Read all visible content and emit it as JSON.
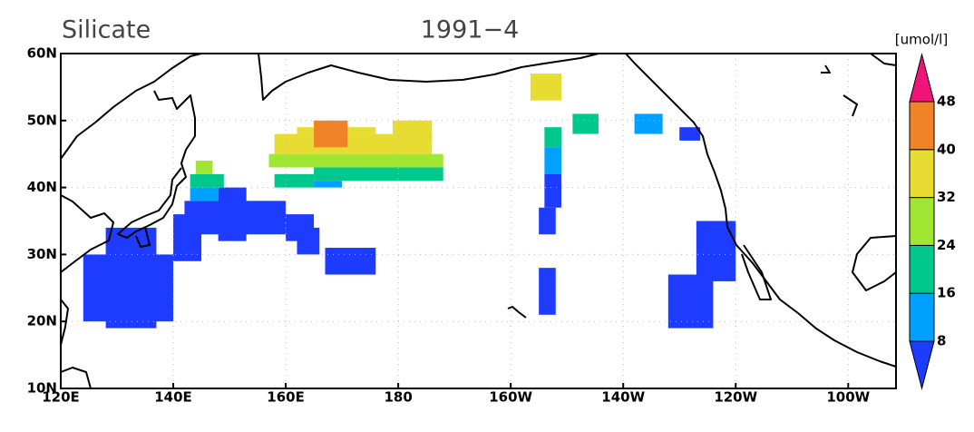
{
  "chart_data": {
    "type": "map",
    "title": "Silicate",
    "subtitle": "1991−4",
    "xlim": [
      120,
      268.5
    ],
    "ylim": [
      10,
      60
    ],
    "xticks": [
      {
        "value": 120,
        "label": "120E"
      },
      {
        "value": 140,
        "label": "140E"
      },
      {
        "value": 160,
        "label": "160E"
      },
      180,
      {
        "value": 200,
        "label": "160W"
      },
      {
        "value": 220,
        "label": "140W"
      },
      {
        "value": 240,
        "label": "120W"
      },
      {
        "value": 260,
        "label": "100W"
      }
    ],
    "yticks": [
      {
        "value": 10,
        "label": "10N"
      },
      {
        "value": 20,
        "label": "20N"
      },
      {
        "value": 30,
        "label": "30N"
      },
      {
        "value": 40,
        "label": "40N"
      },
      {
        "value": 50,
        "label": "50N"
      },
      {
        "value": 60,
        "label": "60N"
      }
    ],
    "grid": true,
    "colorbar": {
      "label": "[umol/l]",
      "levels": [
        8,
        16,
        24,
        32,
        40,
        48
      ],
      "colors": [
        "#1e3cff",
        "#00a0ff",
        "#00c88c",
        "#a0e632",
        "#e6dc32",
        "#f08228",
        "#f0147a"
      ]
    },
    "cells": [
      {
        "lon": [
          124,
          140
        ],
        "lat": [
          20,
          30
        ],
        "value": 4
      },
      {
        "lon": [
          128,
          137
        ],
        "lat": [
          19,
          34
        ],
        "value": 4
      },
      {
        "lon": [
          140,
          145
        ],
        "lat": [
          29,
          36
        ],
        "value": 4
      },
      {
        "lon": [
          142,
          160
        ],
        "lat": [
          33,
          38
        ],
        "value": 4
      },
      {
        "lon": [
          148,
          153
        ],
        "lat": [
          32,
          40
        ],
        "value": 4
      },
      {
        "lon": [
          160,
          165
        ],
        "lat": [
          32,
          36
        ],
        "value": 4
      },
      {
        "lon": [
          162,
          166
        ],
        "lat": [
          30,
          34
        ],
        "value": 4
      },
      {
        "lon": [
          167,
          176
        ],
        "lat": [
          27,
          31
        ],
        "value": 4
      },
      {
        "lon": [
          143,
          148
        ],
        "lat": [
          38,
          40
        ],
        "value": 12
      },
      {
        "lon": [
          143,
          149
        ],
        "lat": [
          40,
          42
        ],
        "value": 20
      },
      {
        "lon": [
          144,
          147
        ],
        "lat": [
          42,
          44
        ],
        "value": 28
      },
      {
        "lon": [
          158,
          165
        ],
        "lat": [
          40,
          42
        ],
        "value": 20
      },
      {
        "lon": [
          165,
          170
        ],
        "lat": [
          40,
          41
        ],
        "value": 12
      },
      {
        "lon": [
          165,
          188
        ],
        "lat": [
          41,
          43
        ],
        "value": 20
      },
      {
        "lon": [
          157,
          188
        ],
        "lat": [
          43,
          45
        ],
        "value": 28
      },
      {
        "lon": [
          158,
          186
        ],
        "lat": [
          45,
          48
        ],
        "value": 36
      },
      {
        "lon": [
          162,
          176
        ],
        "lat": [
          48,
          49
        ],
        "value": 36
      },
      {
        "lon": [
          165,
          171
        ],
        "lat": [
          46,
          50
        ],
        "value": 44
      },
      {
        "lon": [
          179,
          186
        ],
        "lat": [
          47,
          50
        ],
        "value": 36
      },
      {
        "lon": [
          206,
          209
        ],
        "lat": [
          46,
          49
        ],
        "value": 20
      },
      {
        "lon": [
          206,
          209
        ],
        "lat": [
          42,
          46
        ],
        "value": 12
      },
      {
        "lon": [
          206,
          209
        ],
        "lat": [
          37,
          42
        ],
        "value": 4
      },
      {
        "lon": [
          205,
          208
        ],
        "lat": [
          33,
          37
        ],
        "value": 4
      },
      {
        "lon": [
          205,
          208
        ],
        "lat": [
          21,
          28
        ],
        "value": 4
      },
      {
        "lon": [
          203.5,
          209
        ],
        "lat": [
          53,
          57
        ],
        "value": 36
      },
      {
        "lon": [
          211,
          215.6
        ],
        "lat": [
          48,
          51
        ],
        "value": 20
      },
      {
        "lon": [
          222,
          227
        ],
        "lat": [
          48,
          51
        ],
        "value": 12
      },
      {
        "lon": [
          230,
          233.7
        ],
        "lat": [
          47,
          49
        ],
        "value": 4
      },
      {
        "lon": [
          233,
          240
        ],
        "lat": [
          26,
          35
        ],
        "value": 4
      },
      {
        "lon": [
          228,
          236
        ],
        "lat": [
          19,
          27
        ],
        "value": 4
      }
    ]
  }
}
